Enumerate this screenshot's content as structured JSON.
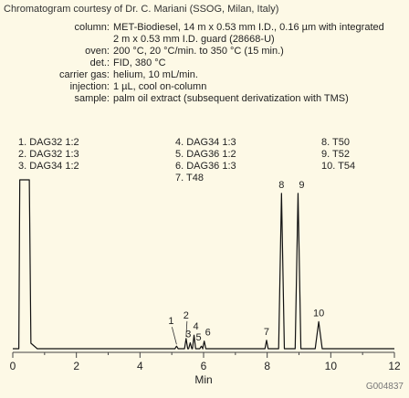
{
  "credit": "Chromatogram courtesy of Dr. C. Mariani (SSOG, Milan, Italy)",
  "conditions": [
    {
      "key": "column:",
      "value": "MET-Biodiesel, 14 m x 0.53 mm I.D., 0.16 µm with integrated 2 m x 0.53 mm I.D. guard (28668-U)"
    },
    {
      "key": "oven:",
      "value": "200 °C, 20 °C/min. to 350 °C (15 min.)"
    },
    {
      "key": "det.:",
      "value": "FID, 380 °C"
    },
    {
      "key": "carrier gas:",
      "value": "helium, 10 mL/min."
    },
    {
      "key": "injection:",
      "value": "1 µL, cool on-column"
    },
    {
      "key": "sample:",
      "value": "palm oil extract (subsequent derivatization with TMS)"
    }
  ],
  "peak_list": [
    [
      "1. DAG32 1:2",
      "2. DAG32 1:3",
      "3. DAG34 1:2"
    ],
    [
      "4. DAG34 1:3",
      "5. DAG36 1:2",
      "6. DAG36 1:3",
      "7. T48"
    ],
    [
      "8. T50",
      "9. T52",
      "10. T54"
    ]
  ],
  "footer_code": "G004837",
  "colors": {
    "trace": "#111111",
    "axis": "#444444",
    "background": "#fdf9e6"
  },
  "chart_data": {
    "type": "line",
    "xlabel": "Min",
    "xlim": [
      0,
      12
    ],
    "xticks": [
      0,
      2,
      4,
      6,
      8,
      10,
      12
    ],
    "ylim": [
      0,
      100
    ],
    "solvent_peak": {
      "start": 0.22,
      "end": 0.52,
      "height": 100
    },
    "peaks": [
      {
        "label": "1",
        "rt": 5.15,
        "height": 1.5
      },
      {
        "label": "2",
        "rt": 5.45,
        "height": 6.0
      },
      {
        "label": "3",
        "rt": 5.58,
        "height": 3.5
      },
      {
        "label": "4",
        "rt": 5.7,
        "height": 8.0
      },
      {
        "label": "5",
        "rt": 5.93,
        "height": 1.5
      },
      {
        "label": "6",
        "rt": 6.02,
        "height": 4.5
      },
      {
        "label": "7",
        "rt": 7.98,
        "height": 5.0
      },
      {
        "label": "8",
        "rt": 8.45,
        "height": 92.0
      },
      {
        "label": "9",
        "rt": 8.97,
        "height": 92.0
      },
      {
        "label": "10",
        "rt": 9.62,
        "height": 16.0
      }
    ]
  }
}
